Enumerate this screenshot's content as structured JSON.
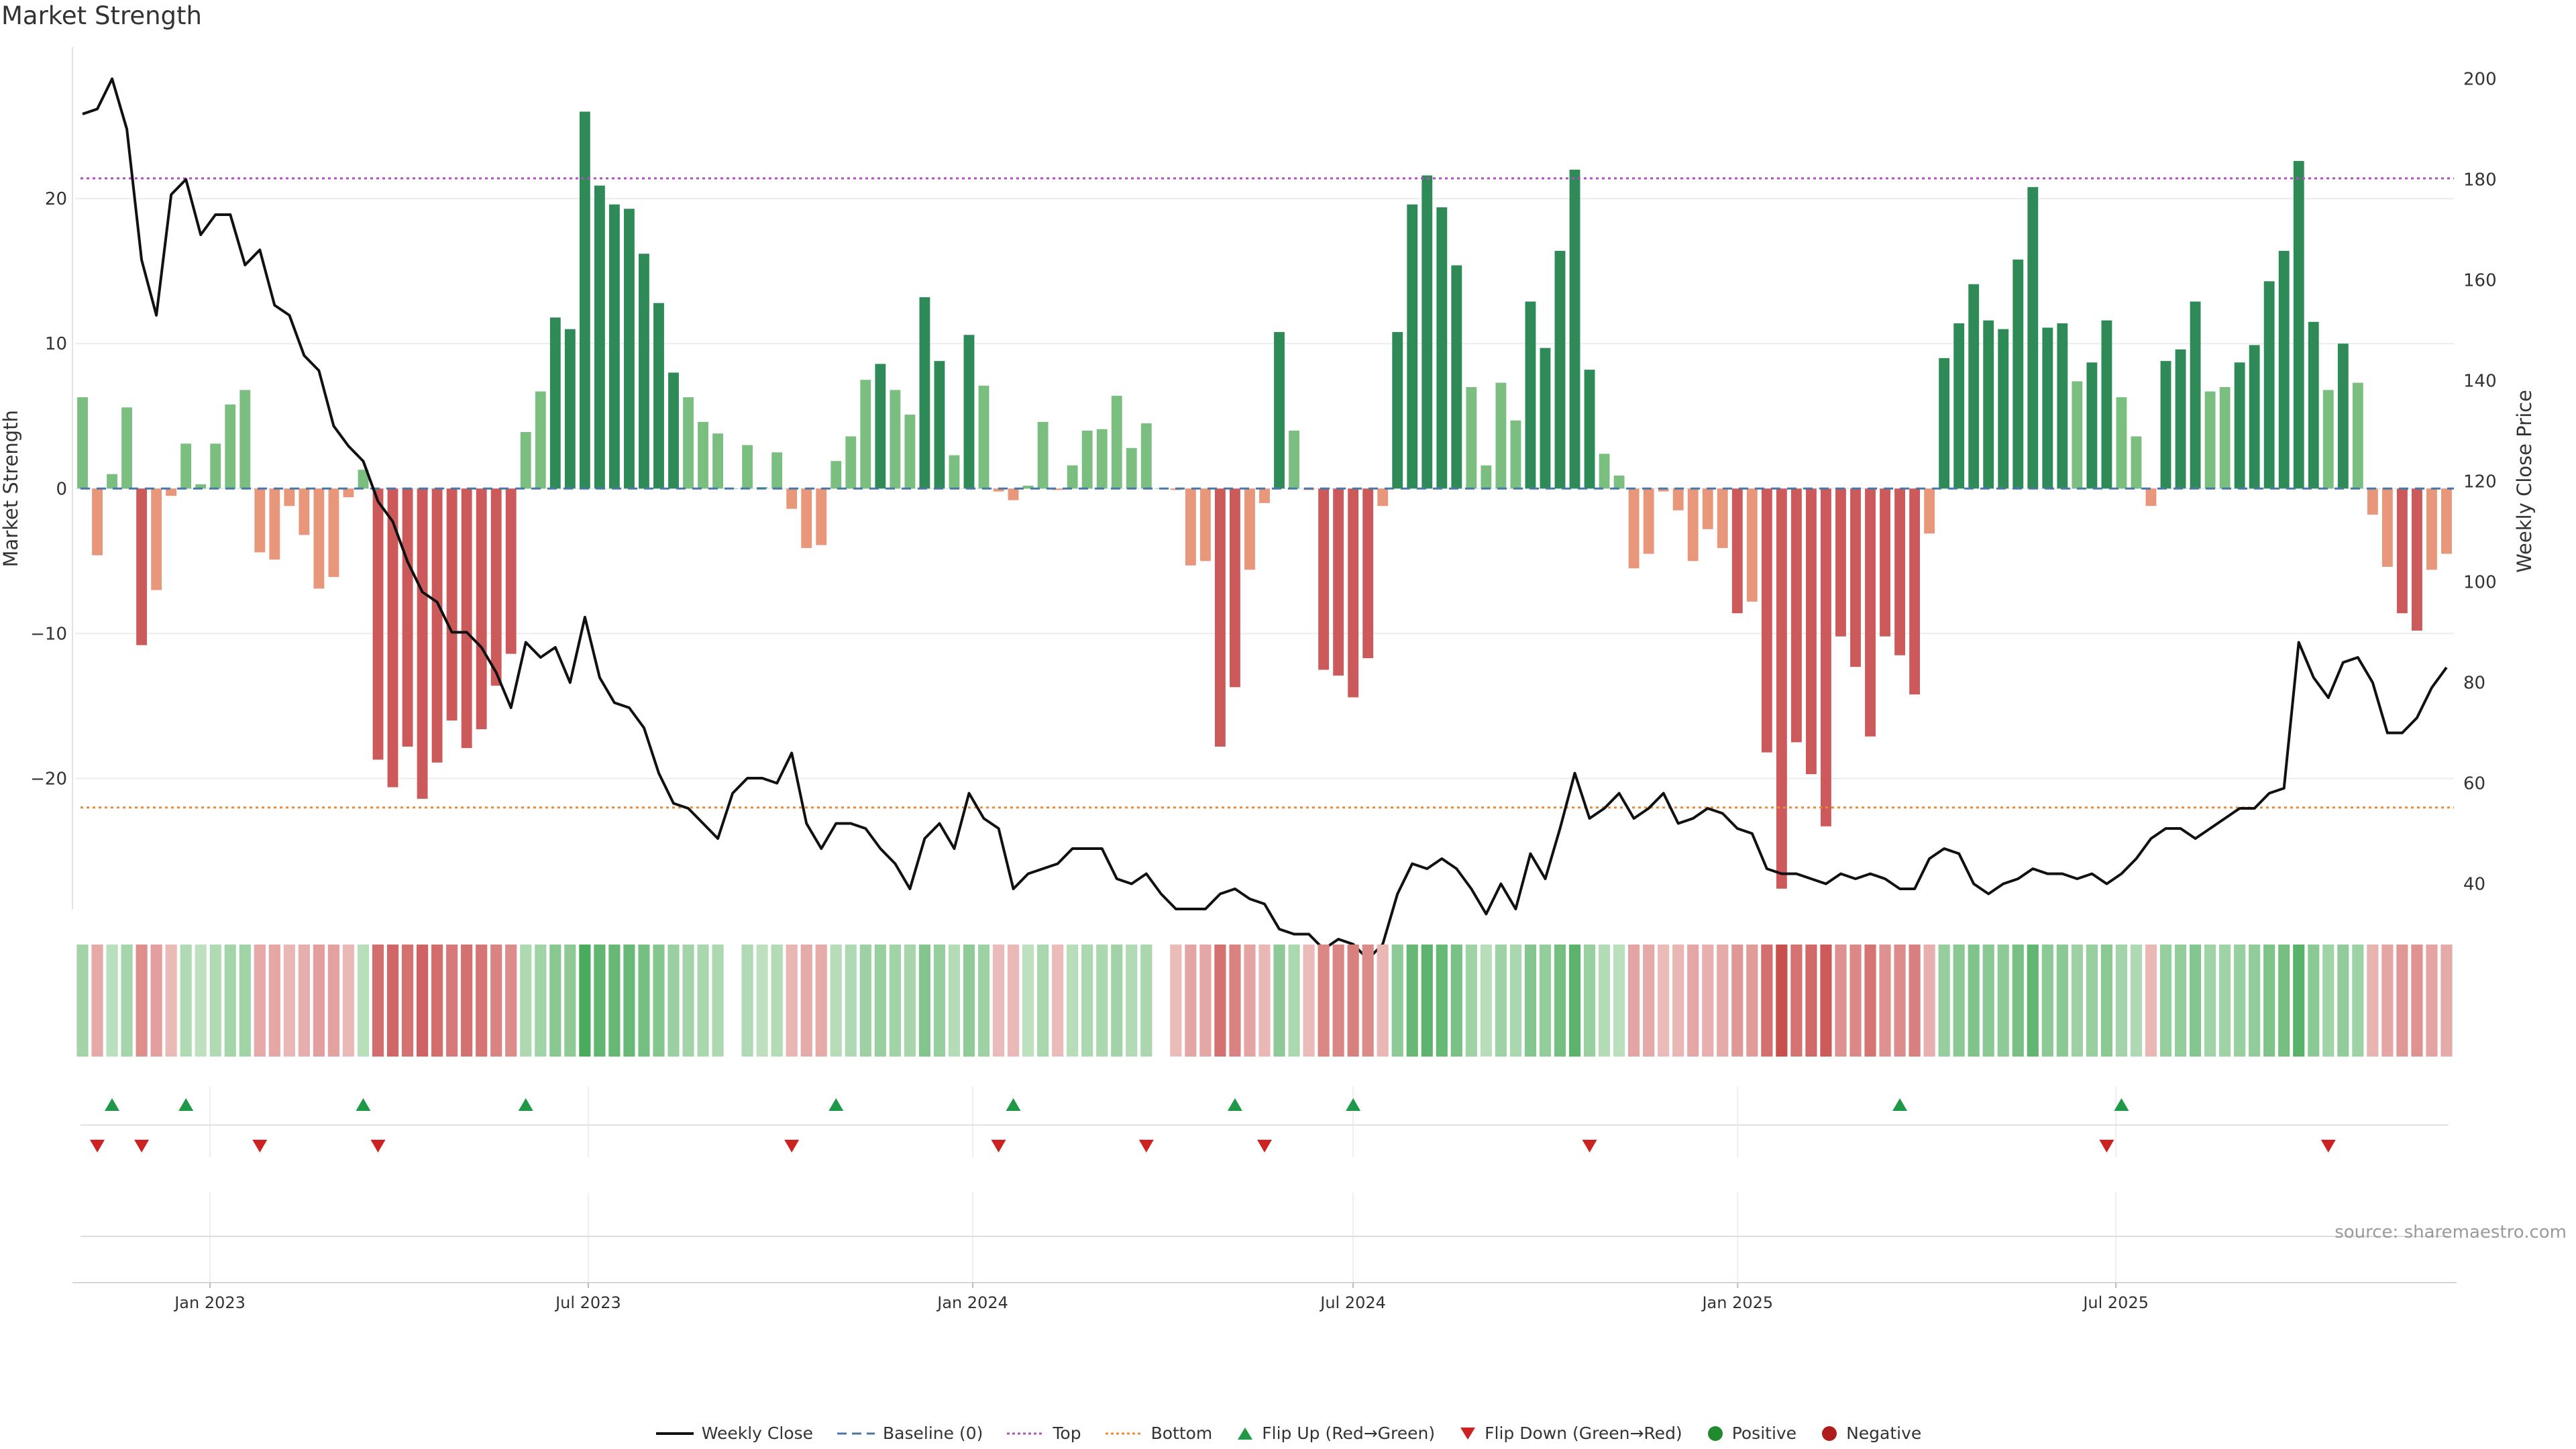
{
  "page": {
    "title": "Market Strength",
    "source": "source: sharemaestro.com"
  },
  "legend": [
    {
      "label": "Weekly Close",
      "kind": "line",
      "color": "#111111"
    },
    {
      "label": "Baseline (0)",
      "kind": "dash",
      "color": "#4a78a6"
    },
    {
      "label": "Top",
      "kind": "dot",
      "color": "#b34ec2"
    },
    {
      "label": "Bottom",
      "kind": "dot",
      "color": "#e88b3c"
    },
    {
      "label": "Flip Up (Red→Green)",
      "kind": "tri-up",
      "color": "#1f9948"
    },
    {
      "label": "Flip Down (Green→Red)",
      "kind": "tri-down",
      "color": "#cc2222"
    },
    {
      "label": "Positive",
      "kind": "circle",
      "color": "#1f8a2e"
    },
    {
      "label": "Negative",
      "kind": "circle",
      "color": "#b01c1c"
    }
  ],
  "chart_data": {
    "type": "bar",
    "ylabel": "Market Strength",
    "y2label": "Weekly Close Price",
    "ylim": [
      -29,
      30
    ],
    "y2lim": [
      35,
      205
    ],
    "yticks": [
      20,
      10,
      0,
      -10,
      -20
    ],
    "y2ticks": [
      200,
      180,
      160,
      140,
      120,
      100,
      80,
      60,
      40
    ],
    "top_threshold": 21.4,
    "bottom_threshold": -22,
    "baseline": 0,
    "x_start": "2022-11-01",
    "week_days": 7.07,
    "x_end": "2025-10-06",
    "xticks": [
      {
        "label": "Jan 2023",
        "date": "2023-01-01"
      },
      {
        "label": "Jul 2023",
        "date": "2023-07-01"
      },
      {
        "label": "Jan 2024",
        "date": "2024-01-01"
      },
      {
        "label": "Jul 2024",
        "date": "2024-07-01"
      },
      {
        "label": "Jan 2025",
        "date": "2025-01-01"
      },
      {
        "label": "Jul 2025",
        "date": "2025-07-01"
      }
    ],
    "strength": [
      6.3,
      -4.6,
      1,
      5.6,
      -10.8,
      -7,
      -0.5,
      3.1,
      0.3,
      3.1,
      5.8,
      6.8,
      -4.4,
      -4.9,
      -1.2,
      -3.2,
      -6.9,
      -6.1,
      -0.6,
      1.3,
      -18.7,
      -20.6,
      -17.8,
      -21.4,
      -18.9,
      -16,
      -17.9,
      -16.6,
      -13.6,
      -11.4,
      3.9,
      6.7,
      11.8,
      11,
      26,
      20.9,
      19.6,
      19.3,
      16.2,
      12.8,
      8,
      6.3,
      4.6,
      3.8,
      0,
      3,
      0.1,
      2.5,
      -1.4,
      -4.1,
      -3.9,
      1.9,
      3.6,
      7.5,
      8.6,
      6.8,
      5.1,
      13.2,
      8.8,
      2.3,
      10.6,
      7.1,
      -0.2,
      -0.8,
      0.2,
      4.6,
      -0.1,
      1.6,
      4,
      4.1,
      6.4,
      2.8,
      4.5,
      0,
      -0.1,
      -5.3,
      -5,
      -17.8,
      -13.7,
      -5.6,
      -1,
      10.8,
      4,
      -0.1,
      -12.5,
      -12.9,
      -14.4,
      -11.7,
      -1.2,
      10.8,
      19.6,
      21.6,
      19.4,
      15.4,
      7,
      1.6,
      7.3,
      4.7,
      12.9,
      9.7,
      16.4,
      22,
      8.2,
      2.4,
      0.9,
      -5.5,
      -4.5,
      -0.2,
      -1.5,
      -5,
      -2.8,
      -4.1,
      -8.6,
      -7.8,
      -18.2,
      -27.6,
      -17.5,
      -19.7,
      -23.3,
      -10.2,
      -12.3,
      -17.1,
      -10.2,
      -11.5,
      -14.2,
      -3.1,
      9,
      11.4,
      14.1,
      11.6,
      11,
      15.8,
      20.8,
      11.1,
      11.4,
      7.4,
      8.7,
      11.6,
      6.3,
      3.6,
      -1.2,
      8.8,
      9.6,
      12.9,
      6.7,
      7,
      8.7,
      9.9,
      14.3,
      16.4,
      22.6,
      11.5,
      6.8,
      10,
      7.3,
      -1.8,
      -5.4,
      -8.6,
      -9.8,
      -5.6,
      -4.5
    ],
    "weekly_close": [
      193,
      194,
      200,
      190,
      164,
      153,
      177,
      180,
      169,
      173,
      173,
      163,
      166,
      155,
      153,
      145,
      142,
      131,
      127,
      124,
      116,
      112,
      104,
      98,
      96,
      90,
      90,
      87,
      82,
      75,
      88,
      85,
      87,
      80,
      93,
      81,
      76,
      75,
      71,
      62,
      56,
      55,
      52,
      49,
      58,
      61,
      61,
      60,
      66,
      52,
      47,
      52,
      52,
      51,
      47,
      44,
      39,
      49,
      52,
      47,
      58,
      53,
      51,
      39,
      42,
      43,
      44,
      47,
      47,
      47,
      41,
      40,
      42,
      38,
      35,
      35,
      35,
      38,
      39,
      37,
      36,
      31,
      30,
      30,
      27,
      29,
      28,
      25,
      28,
      38,
      44,
      43,
      45,
      43,
      39,
      34,
      40,
      35,
      46,
      41,
      51,
      62,
      53,
      55,
      58,
      53,
      55,
      58,
      52,
      53,
      55,
      54,
      51,
      50,
      43,
      42,
      42,
      41,
      40,
      42,
      41,
      42,
      41,
      39,
      39,
      45,
      47,
      46,
      40,
      38,
      40,
      41,
      43,
      42,
      42,
      41,
      42,
      40,
      42,
      45,
      49,
      51,
      51,
      49,
      51,
      53,
      55,
      55,
      58,
      59,
      88,
      81,
      77,
      84,
      85,
      80,
      70,
      70,
      73,
      79,
      83
    ],
    "flip_up_weeks": [
      2,
      7,
      19,
      30,
      51,
      63,
      78,
      86,
      123,
      138
    ],
    "flip_down_weeks": [
      1,
      4,
      12,
      20,
      48,
      62,
      72,
      80,
      102,
      137,
      152
    ]
  }
}
